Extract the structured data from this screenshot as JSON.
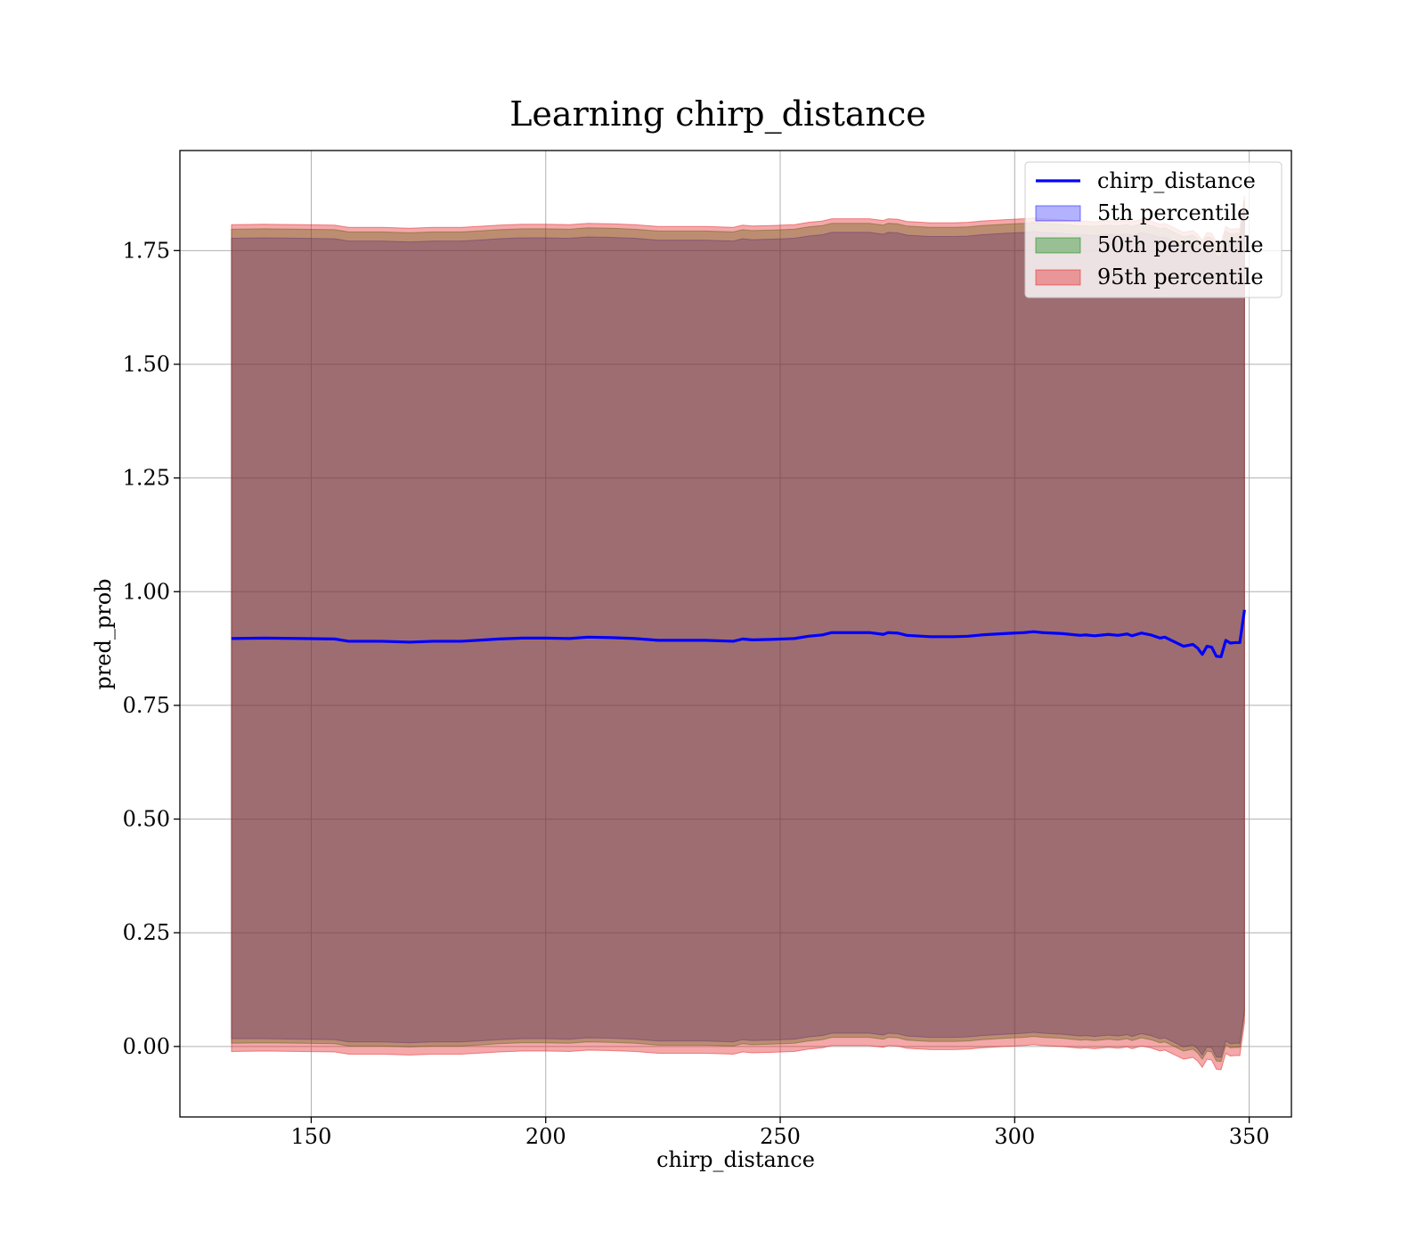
{
  "chart_data": {
    "type": "area",
    "title": "Learning chirp_distance",
    "xlabel": "chirp_distance",
    "ylabel": "pred_prob",
    "xlim": [
      122,
      359
    ],
    "ylim": [
      -0.155,
      1.97
    ],
    "xticks": [
      150,
      200,
      250,
      300,
      350
    ],
    "yticks": [
      0.0,
      0.25,
      0.5,
      0.75,
      1.0,
      1.25,
      1.5,
      1.75
    ],
    "ytick_labels": [
      "0.00",
      "0.25",
      "0.50",
      "0.75",
      "1.00",
      "1.25",
      "1.50",
      "1.75"
    ],
    "grid": true,
    "legend_position": "top-right",
    "x": [
      133,
      140,
      148,
      155,
      158,
      165,
      171,
      176,
      182,
      187,
      190,
      195,
      200,
      205,
      209,
      214,
      219,
      224,
      229,
      234,
      240,
      242,
      244,
      248,
      253,
      256,
      259,
      261,
      264,
      269,
      272,
      273,
      275,
      277,
      282,
      287,
      290,
      293,
      298,
      302,
      304,
      306,
      310,
      314,
      315,
      317,
      320,
      322,
      324,
      325,
      327,
      329,
      331,
      332,
      334,
      336,
      338,
      339,
      340,
      341,
      342,
      343,
      344,
      345,
      346,
      347,
      348,
      349
    ],
    "series": [
      {
        "name": "chirp_distance",
        "type": "line",
        "color": "#0000ff",
        "values": [
          0.897,
          0.898,
          0.897,
          0.896,
          0.891,
          0.891,
          0.889,
          0.891,
          0.891,
          0.894,
          0.896,
          0.898,
          0.898,
          0.897,
          0.9,
          0.899,
          0.897,
          0.893,
          0.893,
          0.893,
          0.891,
          0.896,
          0.894,
          0.895,
          0.897,
          0.902,
          0.905,
          0.91,
          0.91,
          0.91,
          0.906,
          0.91,
          0.909,
          0.904,
          0.901,
          0.901,
          0.902,
          0.905,
          0.908,
          0.91,
          0.912,
          0.91,
          0.908,
          0.904,
          0.905,
          0.903,
          0.906,
          0.904,
          0.907,
          0.903,
          0.909,
          0.905,
          0.898,
          0.9,
          0.89,
          0.88,
          0.884,
          0.876,
          0.862,
          0.88,
          0.878,
          0.858,
          0.857,
          0.893,
          0.887,
          0.888,
          0.888,
          0.96
        ]
      },
      {
        "name": "5th percentile",
        "type": "band",
        "color": "#0000ff",
        "opacity": 0.3,
        "lower": [
          0.017,
          0.017,
          0.016,
          0.015,
          0.01,
          0.01,
          0.008,
          0.01,
          0.01,
          0.013,
          0.015,
          0.017,
          0.017,
          0.016,
          0.019,
          0.018,
          0.016,
          0.012,
          0.012,
          0.012,
          0.01,
          0.015,
          0.013,
          0.014,
          0.016,
          0.021,
          0.024,
          0.029,
          0.029,
          0.029,
          0.025,
          0.029,
          0.028,
          0.023,
          0.02,
          0.02,
          0.021,
          0.024,
          0.027,
          0.029,
          0.031,
          0.029,
          0.027,
          0.023,
          0.024,
          0.022,
          0.025,
          0.023,
          0.026,
          0.022,
          0.028,
          0.024,
          0.017,
          0.019,
          0.009,
          -0.001,
          0.003,
          -0.005,
          -0.019,
          -0.001,
          -0.003,
          -0.023,
          -0.024,
          0.012,
          0.006,
          0.007,
          0.007,
          0.079
        ],
        "upper": [
          1.777,
          1.778,
          1.777,
          1.776,
          1.771,
          1.771,
          1.769,
          1.771,
          1.771,
          1.774,
          1.776,
          1.778,
          1.778,
          1.777,
          1.78,
          1.779,
          1.777,
          1.773,
          1.773,
          1.773,
          1.771,
          1.776,
          1.774,
          1.775,
          1.777,
          1.782,
          1.785,
          1.79,
          1.79,
          1.79,
          1.786,
          1.79,
          1.789,
          1.784,
          1.781,
          1.781,
          1.782,
          1.785,
          1.788,
          1.79,
          1.792,
          1.79,
          1.788,
          1.784,
          1.785,
          1.783,
          1.786,
          1.784,
          1.787,
          1.783,
          1.789,
          1.785,
          1.778,
          1.78,
          1.77,
          1.76,
          1.764,
          1.756,
          1.742,
          1.76,
          1.758,
          1.738,
          1.737,
          1.773,
          1.767,
          1.768,
          1.768,
          1.84
        ]
      },
      {
        "name": "50th percentile",
        "type": "band",
        "color": "#008000",
        "opacity": 0.35,
        "lower": [
          0.007,
          0.008,
          0.007,
          0.006,
          0.001,
          0.001,
          -0.001,
          0.001,
          0.001,
          0.004,
          0.006,
          0.008,
          0.008,
          0.007,
          0.01,
          0.009,
          0.007,
          0.003,
          0.003,
          0.003,
          0.001,
          0.006,
          0.004,
          0.005,
          0.007,
          0.012,
          0.015,
          0.02,
          0.02,
          0.02,
          0.016,
          0.02,
          0.019,
          0.014,
          0.011,
          0.011,
          0.012,
          0.015,
          0.018,
          0.02,
          0.022,
          0.02,
          0.018,
          0.014,
          0.015,
          0.013,
          0.016,
          0.014,
          0.017,
          0.013,
          0.019,
          0.015,
          0.008,
          0.01,
          0.0,
          -0.01,
          -0.006,
          -0.014,
          -0.028,
          -0.01,
          -0.012,
          -0.032,
          -0.033,
          0.003,
          -0.003,
          -0.002,
          -0.002,
          0.07
        ],
        "upper": [
          1.797,
          1.798,
          1.797,
          1.796,
          1.791,
          1.791,
          1.789,
          1.791,
          1.791,
          1.794,
          1.796,
          1.798,
          1.798,
          1.797,
          1.8,
          1.799,
          1.797,
          1.793,
          1.793,
          1.793,
          1.791,
          1.796,
          1.794,
          1.795,
          1.797,
          1.802,
          1.805,
          1.81,
          1.81,
          1.81,
          1.806,
          1.81,
          1.809,
          1.804,
          1.801,
          1.801,
          1.802,
          1.805,
          1.808,
          1.81,
          1.812,
          1.81,
          1.808,
          1.804,
          1.805,
          1.803,
          1.806,
          1.804,
          1.807,
          1.803,
          1.809,
          1.805,
          1.798,
          1.8,
          1.79,
          1.78,
          1.784,
          1.776,
          1.762,
          1.78,
          1.778,
          1.758,
          1.757,
          1.793,
          1.787,
          1.788,
          1.788,
          1.86
        ]
      },
      {
        "name": "95th percentile",
        "type": "band",
        "color": "#e31a1c",
        "opacity": 0.38,
        "lower": [
          -0.011,
          -0.01,
          -0.011,
          -0.012,
          -0.017,
          -0.017,
          -0.019,
          -0.017,
          -0.017,
          -0.014,
          -0.012,
          -0.01,
          -0.01,
          -0.011,
          -0.008,
          -0.009,
          -0.011,
          -0.015,
          -0.015,
          -0.015,
          -0.017,
          -0.012,
          -0.014,
          -0.013,
          -0.011,
          -0.006,
          -0.003,
          0.002,
          0.002,
          0.002,
          -0.002,
          0.002,
          0.001,
          -0.004,
          -0.007,
          -0.007,
          -0.006,
          -0.003,
          0.0,
          0.002,
          0.004,
          0.002,
          0.0,
          -0.004,
          -0.003,
          -0.005,
          -0.002,
          -0.004,
          -0.001,
          -0.005,
          0.001,
          -0.003,
          -0.01,
          -0.008,
          -0.018,
          -0.028,
          -0.024,
          -0.032,
          -0.046,
          -0.028,
          -0.03,
          -0.05,
          -0.051,
          -0.015,
          -0.021,
          -0.02,
          -0.02,
          0.052
        ],
        "upper": [
          1.807,
          1.808,
          1.807,
          1.806,
          1.801,
          1.801,
          1.799,
          1.801,
          1.801,
          1.804,
          1.806,
          1.808,
          1.808,
          1.807,
          1.81,
          1.809,
          1.807,
          1.803,
          1.803,
          1.803,
          1.801,
          1.806,
          1.804,
          1.805,
          1.807,
          1.812,
          1.815,
          1.82,
          1.82,
          1.82,
          1.816,
          1.82,
          1.819,
          1.814,
          1.811,
          1.811,
          1.812,
          1.815,
          1.818,
          1.82,
          1.822,
          1.82,
          1.818,
          1.814,
          1.815,
          1.813,
          1.816,
          1.814,
          1.817,
          1.813,
          1.819,
          1.815,
          1.808,
          1.81,
          1.8,
          1.79,
          1.794,
          1.786,
          1.772,
          1.79,
          1.788,
          1.768,
          1.767,
          1.803,
          1.797,
          1.798,
          1.798,
          1.87
        ]
      }
    ]
  }
}
